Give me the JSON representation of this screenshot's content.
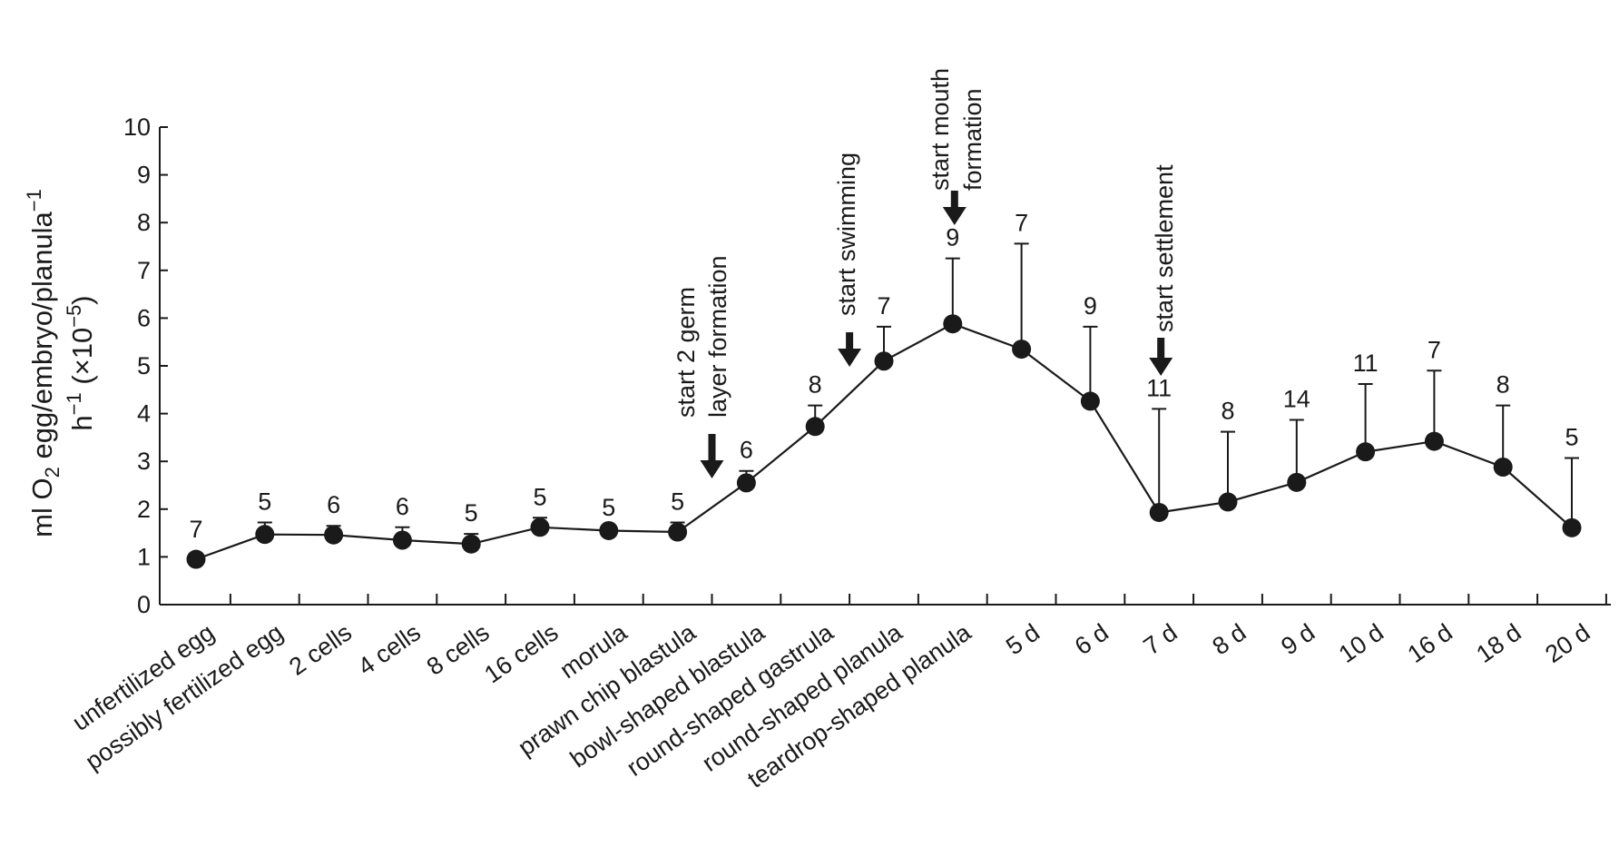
{
  "chart_data": {
    "type": "line",
    "title": "",
    "xlabel": "",
    "ylabel": {
      "line1_main": "ml O",
      "line1_sub": "2",
      "line1_rest": " egg/embryo/planula",
      "line1_sup": "−1",
      "line2_main": "h",
      "line2_sup": "−1",
      "line2_rest": " (×10",
      "line2_sup2": "−5",
      "line2_end": ")"
    },
    "ylim": [
      0,
      10
    ],
    "yticks": [
      "0",
      "1",
      "2",
      "3",
      "4",
      "5",
      "6",
      "7",
      "8",
      "9",
      "10"
    ],
    "grid": false,
    "categories": [
      "unfertilized egg",
      "possibly fertilized egg",
      "2 cells",
      "4 cells",
      "8 cells",
      "16 cells",
      "morula",
      "prawn chip blastula",
      "bowl-shaped blastula",
      "round-shaped gastrula",
      "round-shaped planula",
      "teardrop-shaped planula",
      "5 d",
      "6 d",
      "7 d",
      "8 d",
      "9 d",
      "10 d",
      "16 d",
      "18 d",
      "20 d"
    ],
    "series": [
      {
        "values": [
          0.95,
          1.47,
          1.46,
          1.35,
          1.27,
          1.62,
          1.55,
          1.52,
          2.55,
          3.73,
          5.1,
          5.88,
          5.35,
          4.26,
          1.93,
          2.15,
          2.56,
          3.2,
          3.42,
          2.88,
          1.61
        ],
        "err_upper": [
          0,
          1.72,
          1.65,
          1.62,
          1.48,
          1.82,
          1.6,
          1.72,
          2.8,
          4.17,
          5.82,
          7.25,
          7.56,
          5.82,
          4.1,
          3.62,
          3.87,
          4.62,
          4.9,
          4.17,
          3.07
        ],
        "n": [
          "7",
          "5",
          "6",
          "6",
          "5",
          "5",
          "5",
          "5",
          "6",
          "8",
          "7",
          "9",
          "7",
          "9",
          "11",
          "8",
          "14",
          "11",
          "7",
          "8",
          "5"
        ]
      }
    ],
    "annotations": [
      {
        "lines": [
          "start 2 germ",
          "layer formation"
        ],
        "between": [
          7,
          8
        ]
      },
      {
        "lines": [
          "start swimming"
        ],
        "between": [
          9,
          10
        ]
      },
      {
        "lines": [
          "start mouth",
          "formation"
        ],
        "between": [
          11,
          11
        ]
      },
      {
        "lines": [
          "start settlement"
        ],
        "between": [
          14,
          14
        ]
      }
    ]
  }
}
